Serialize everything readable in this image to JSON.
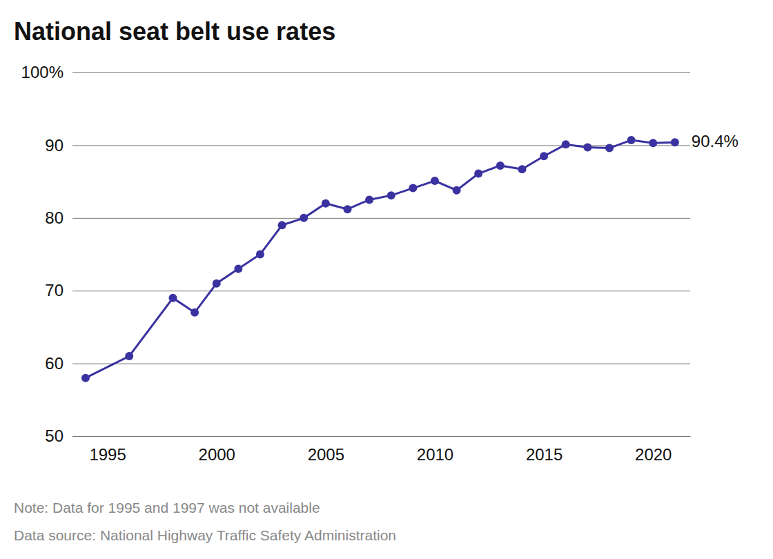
{
  "chart_data": {
    "type": "line",
    "title": "National seat belt use rates",
    "x": [
      1994,
      1996,
      1998,
      1999,
      2000,
      2001,
      2002,
      2003,
      2004,
      2005,
      2006,
      2007,
      2008,
      2009,
      2010,
      2011,
      2012,
      2013,
      2014,
      2015,
      2016,
      2017,
      2018,
      2019,
      2020,
      2021
    ],
    "values": [
      58,
      61,
      69,
      67,
      71,
      73,
      75,
      79,
      80,
      82,
      81.2,
      82.5,
      83.1,
      84.1,
      85.1,
      83.8,
      86.1,
      87.2,
      86.7,
      88.5,
      90.1,
      89.7,
      89.6,
      90.7,
      90.3,
      90.4
    ],
    "color": "#3a32a0",
    "marker": "circle",
    "line_style": "solid",
    "grid": true,
    "xlim": [
      1993.4,
      2021.7
    ],
    "xticks": [
      1995,
      2000,
      2005,
      2010,
      2015,
      2020
    ],
    "ylim": [
      50,
      100
    ],
    "yticks": [
      50,
      60,
      70,
      80,
      90,
      {
        "value": 100,
        "label": "100%"
      }
    ],
    "annotations": [
      {
        "text": "90.4%",
        "x": 2021,
        "y": 90.4
      }
    ],
    "note": "Note: Data for 1995 and 1997 was not available",
    "source": "Data source: National Highway Traffic Safety Administration"
  }
}
